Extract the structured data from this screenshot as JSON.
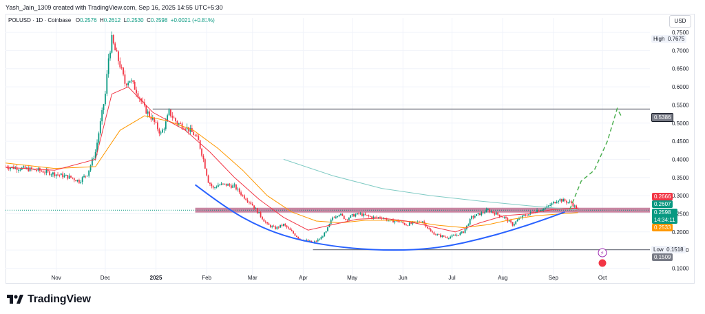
{
  "header": {
    "attribution": "Yash_Jain_1309 created with TradingView.com, Sep 16, 2025 14:55 UTC+5:30"
  },
  "symbol": {
    "name": "POLUSD · 1D · Coinbase",
    "open_label": "O",
    "open": "0.2576",
    "high_label": "H",
    "high": "0.2612",
    "low_label": "L",
    "low": "0.2530",
    "close_label": "C",
    "close": "0.2598",
    "change": "+0.0021 (+0.81%)"
  },
  "currency_button": "USD",
  "price_tags": {
    "high_label": "High",
    "high_value": "0.7675",
    "level": "0.5386",
    "red_tag": "0.2666",
    "green_tag": "0.2607",
    "last_price": "0.2598",
    "countdown": "14:34:11",
    "orange_tag": "0.2533",
    "low_label": "Low",
    "low_value": "0.1518",
    "low_level": "0.1509"
  },
  "colors": {
    "up": "#089981",
    "down": "#f23645",
    "ema_red": "#f23645",
    "ema_orange": "#ff9800",
    "ma_teal": "#80cbc4",
    "curve": "#2962ff",
    "zone": "#b2527a",
    "projection": "#4caf50"
  },
  "footer": {
    "brand": "TradingView"
  },
  "chart_data": {
    "type": "candlestick",
    "y_ticks": [
      "0.7500",
      "0.7000",
      "0.6500",
      "0.6000",
      "0.5500",
      "0.5000",
      "0.4500",
      "0.4000",
      "0.3500",
      "0.3000",
      "0.2500",
      "0.2000",
      "0.1500",
      "0.1000"
    ],
    "y_range": [
      0.08,
      0.79
    ],
    "x_ticks": [
      "Nov",
      "Dec",
      "2025",
      "Feb",
      "Mar",
      "Apr",
      "May",
      "Jun",
      "Jul",
      "Aug",
      "Sep",
      "Oct"
    ],
    "x_tick_days": [
      31,
      61,
      92,
      123,
      151,
      182,
      212,
      243,
      273,
      304,
      335,
      365
    ],
    "x_range_days": [
      0,
      394
    ],
    "x_ticks_bold": [
      "2025"
    ],
    "horizontal_lines": [
      0.5386,
      0.1509
    ],
    "support_zone": [
      0.2533,
      0.2666
    ],
    "anchors": [
      [
        0,
        0.38
      ],
      [
        10,
        0.375
      ],
      [
        20,
        0.37
      ],
      [
        30,
        0.36
      ],
      [
        40,
        0.35
      ],
      [
        45,
        0.34
      ],
      [
        50,
        0.36
      ],
      [
        55,
        0.42
      ],
      [
        58,
        0.5
      ],
      [
        61,
        0.58
      ],
      [
        63,
        0.68
      ],
      [
        65,
        0.73
      ],
      [
        67,
        0.7
      ],
      [
        70,
        0.66
      ],
      [
        73,
        0.61
      ],
      [
        76,
        0.62
      ],
      [
        80,
        0.59
      ],
      [
        85,
        0.54
      ],
      [
        90,
        0.51
      ],
      [
        95,
        0.47
      ],
      [
        98,
        0.5
      ],
      [
        100,
        0.53
      ],
      [
        105,
        0.5
      ],
      [
        110,
        0.49
      ],
      [
        115,
        0.47
      ],
      [
        118,
        0.45
      ],
      [
        121,
        0.4
      ],
      [
        124,
        0.34
      ],
      [
        127,
        0.32
      ],
      [
        130,
        0.33
      ],
      [
        135,
        0.33
      ],
      [
        140,
        0.325
      ],
      [
        145,
        0.3
      ],
      [
        150,
        0.28
      ],
      [
        155,
        0.25
      ],
      [
        160,
        0.22
      ],
      [
        165,
        0.21
      ],
      [
        170,
        0.22
      ],
      [
        175,
        0.2
      ],
      [
        180,
        0.18
      ],
      [
        185,
        0.175
      ],
      [
        188,
        0.17
      ],
      [
        192,
        0.18
      ],
      [
        196,
        0.2
      ],
      [
        200,
        0.24
      ],
      [
        204,
        0.25
      ],
      [
        208,
        0.235
      ],
      [
        212,
        0.245
      ],
      [
        216,
        0.25
      ],
      [
        220,
        0.245
      ],
      [
        225,
        0.24
      ],
      [
        230,
        0.24
      ],
      [
        235,
        0.23
      ],
      [
        240,
        0.23
      ],
      [
        245,
        0.22
      ],
      [
        250,
        0.225
      ],
      [
        255,
        0.23
      ],
      [
        260,
        0.2
      ],
      [
        265,
        0.19
      ],
      [
        270,
        0.185
      ],
      [
        275,
        0.19
      ],
      [
        280,
        0.2
      ],
      [
        285,
        0.24
      ],
      [
        290,
        0.25
      ],
      [
        295,
        0.26
      ],
      [
        300,
        0.25
      ],
      [
        305,
        0.24
      ],
      [
        310,
        0.22
      ],
      [
        315,
        0.24
      ],
      [
        320,
        0.25
      ],
      [
        325,
        0.26
      ],
      [
        330,
        0.265
      ],
      [
        335,
        0.28
      ],
      [
        338,
        0.29
      ],
      [
        342,
        0.285
      ],
      [
        346,
        0.28
      ],
      [
        350,
        0.2598
      ]
    ],
    "ema_red": [
      [
        0,
        0.378
      ],
      [
        30,
        0.37
      ],
      [
        55,
        0.4
      ],
      [
        65,
        0.58
      ],
      [
        75,
        0.6
      ],
      [
        90,
        0.53
      ],
      [
        110,
        0.48
      ],
      [
        125,
        0.42
      ],
      [
        140,
        0.35
      ],
      [
        155,
        0.29
      ],
      [
        170,
        0.24
      ],
      [
        185,
        0.205
      ],
      [
        200,
        0.22
      ],
      [
        215,
        0.235
      ],
      [
        230,
        0.238
      ],
      [
        245,
        0.23
      ],
      [
        260,
        0.215
      ],
      [
        275,
        0.2
      ],
      [
        290,
        0.225
      ],
      [
        305,
        0.245
      ],
      [
        320,
        0.25
      ],
      [
        335,
        0.262
      ],
      [
        350,
        0.266
      ]
    ],
    "ema_orange": [
      [
        0,
        0.39
      ],
      [
        30,
        0.375
      ],
      [
        55,
        0.38
      ],
      [
        70,
        0.48
      ],
      [
        85,
        0.52
      ],
      [
        100,
        0.505
      ],
      [
        115,
        0.48
      ],
      [
        130,
        0.43
      ],
      [
        145,
        0.37
      ],
      [
        160,
        0.3
      ],
      [
        175,
        0.255
      ],
      [
        190,
        0.23
      ],
      [
        205,
        0.225
      ],
      [
        220,
        0.232
      ],
      [
        235,
        0.232
      ],
      [
        250,
        0.228
      ],
      [
        265,
        0.218
      ],
      [
        280,
        0.212
      ],
      [
        295,
        0.22
      ],
      [
        310,
        0.235
      ],
      [
        325,
        0.245
      ],
      [
        340,
        0.25
      ],
      [
        350,
        0.2533
      ]
    ],
    "ma_teal": [
      [
        170,
        0.4
      ],
      [
        200,
        0.355
      ],
      [
        230,
        0.32
      ],
      [
        260,
        0.3
      ],
      [
        290,
        0.285
      ],
      [
        320,
        0.272
      ],
      [
        350,
        0.2607
      ]
    ],
    "curve": [
      [
        116,
        0.33
      ],
      [
        135,
        0.265
      ],
      [
        155,
        0.215
      ],
      [
        175,
        0.182
      ],
      [
        200,
        0.16
      ],
      [
        225,
        0.15
      ],
      [
        250,
        0.15
      ],
      [
        270,
        0.16
      ],
      [
        290,
        0.18
      ],
      [
        310,
        0.205
      ],
      [
        330,
        0.235
      ],
      [
        342,
        0.255
      ]
    ],
    "projection": [
      [
        345,
        0.262
      ],
      [
        352,
        0.34
      ],
      [
        360,
        0.37
      ],
      [
        368,
        0.45
      ],
      [
        374,
        0.54
      ],
      [
        377,
        0.515
      ]
    ]
  }
}
